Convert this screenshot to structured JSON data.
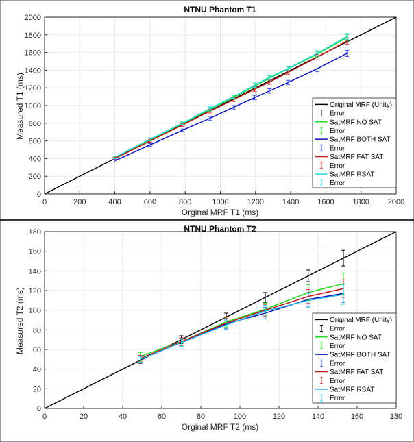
{
  "chart_data": [
    {
      "type": "line",
      "title": "NTNU Phantom T1",
      "xlabel": "Orginal MRF T1 (ms)",
      "ylabel": "Measured T1 (ms)",
      "xlim": [
        0,
        2000
      ],
      "ylim": [
        0,
        2000
      ],
      "xticks": [
        "0",
        "200",
        "400",
        "600",
        "800",
        "1000",
        "1200",
        "1400",
        "1600",
        "1800",
        "2000"
      ],
      "yticks": [
        "0",
        "200",
        "400",
        "600",
        "800",
        "1000",
        "1200",
        "1400",
        "1600",
        "1800",
        "2000"
      ],
      "grid": true,
      "legend_position": "bottom-right",
      "unity": {
        "name": "Original MRF (Unity)",
        "color": "#000000",
        "x": [
          0,
          2000
        ],
        "y": [
          0,
          2000
        ]
      },
      "x": [
        400,
        600,
        785,
        940,
        1075,
        1195,
        1280,
        1385,
        1550,
        1720
      ],
      "series": [
        {
          "name": "SatMRF NO SAT",
          "color": "#22dd22",
          "error_color": "#22dd22",
          "values": [
            410,
            615,
            795,
            955,
            1090,
            1220,
            1310,
            1415,
            1580,
            1770
          ],
          "errors": [
            15,
            15,
            15,
            20,
            20,
            25,
            25,
            25,
            30,
            35
          ]
        },
        {
          "name": "SatMRF BOTH SAT",
          "color": "#0a10c0",
          "error_color": "#3050ff",
          "values": [
            375,
            555,
            720,
            855,
            980,
            1090,
            1165,
            1260,
            1415,
            1590
          ],
          "errors": [
            15,
            15,
            15,
            20,
            20,
            25,
            25,
            25,
            30,
            35
          ]
        },
        {
          "name": "SatMRF FAT SAT",
          "color": "#c01818",
          "error_color": "#e03030",
          "values": [
            400,
            600,
            780,
            935,
            1065,
            1185,
            1265,
            1375,
            1545,
            1730
          ],
          "errors": [
            15,
            15,
            15,
            20,
            20,
            25,
            25,
            25,
            30,
            35
          ]
        },
        {
          "name": "SatMRF RSAT",
          "color": "#20d8e8",
          "error_color": "#20e0e0",
          "values": [
            415,
            620,
            800,
            965,
            1100,
            1230,
            1320,
            1420,
            1590,
            1780
          ],
          "errors": [
            15,
            15,
            15,
            20,
            20,
            25,
            25,
            25,
            30,
            35
          ]
        }
      ],
      "legend": [
        "Original MRF (Unity)",
        "Error",
        "SatMRF NO SAT",
        "Error",
        "SatMRF BOTH SAT",
        "Error",
        "SatMRF FAT SAT",
        "Error",
        "SatMRF RSAT",
        "Error"
      ]
    },
    {
      "type": "line",
      "title": "NTNU Phantom T2",
      "xlabel": "Orginal MRF T2 (ms)",
      "ylabel": "Measured T2 (ms)",
      "xlim": [
        0,
        180
      ],
      "ylim": [
        0,
        180
      ],
      "xticks": [
        "0",
        "20",
        "40",
        "60",
        "80",
        "100",
        "120",
        "140",
        "160",
        "180"
      ],
      "yticks": [
        "0",
        "20",
        "40",
        "60",
        "80",
        "100",
        "120",
        "140",
        "160",
        "180"
      ],
      "grid": true,
      "legend_position": "bottom-right",
      "unity": {
        "name": "Original MRF (Unity)",
        "color": "#000000",
        "x": [
          0,
          180
        ],
        "y": [
          0,
          180
        ]
      },
      "x": [
        49,
        70,
        93,
        113,
        135,
        153
      ],
      "series": [
        {
          "name": "Original MRF",
          "color": "none",
          "error_color": "#000000",
          "values": [
            50,
            70,
            93,
            113,
            135,
            153
          ],
          "errors": [
            4,
            4,
            4,
            5,
            6,
            8
          ]
        },
        {
          "name": "SatMRF NO SAT",
          "color": "#22dd22",
          "error_color": "#22dd22",
          "values": [
            53,
            68,
            88,
            101,
            118,
            127
          ],
          "errors": [
            4,
            4,
            5,
            6,
            8,
            11
          ]
        },
        {
          "name": "SatMRF BOTH SAT",
          "color": "#0a10c0",
          "error_color": "#3050ff",
          "values": [
            50,
            67,
            86,
            97,
            111,
            117
          ],
          "errors": [
            3,
            4,
            5,
            6,
            7,
            9
          ]
        },
        {
          "name": "SatMRF FAT SAT",
          "color": "#c01818",
          "error_color": "#e03030",
          "values": [
            51,
            68,
            87,
            100,
            114,
            122
          ],
          "errors": [
            3,
            4,
            5,
            6,
            7,
            9
          ]
        },
        {
          "name": "SatMRF RSAT",
          "color": "#20b8f0",
          "error_color": "#20e0e0",
          "values": [
            50,
            67,
            85,
            99,
            110,
            116
          ],
          "errors": [
            3,
            4,
            5,
            6,
            7,
            10
          ]
        }
      ],
      "legend": [
        "Original MRF (Unity)",
        "Error",
        "SatMRF NO SAT",
        "Error",
        "SatMRF BOTH SAT",
        "Error",
        "SatMRF FAT SAT",
        "Error",
        "SatMRF RSAT",
        "Error"
      ]
    }
  ]
}
